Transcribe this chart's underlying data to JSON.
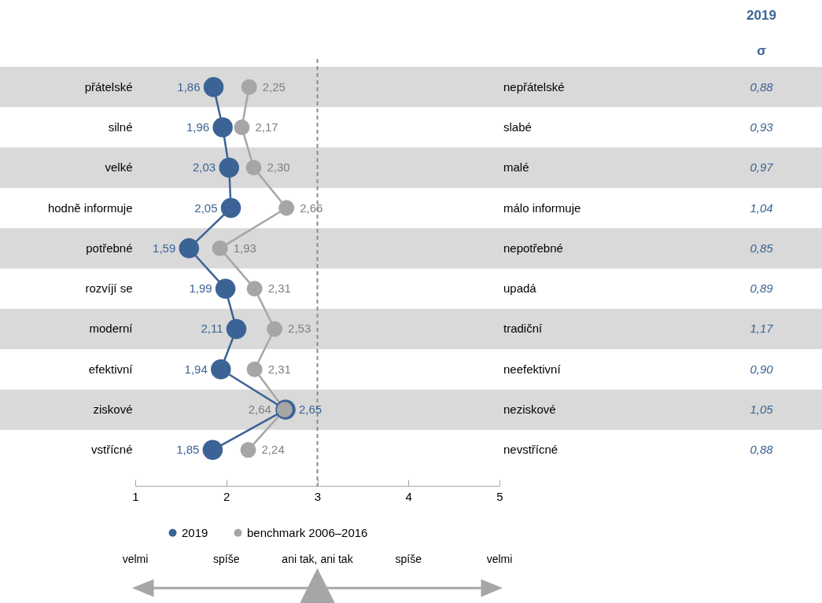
{
  "chart_data": {
    "type": "line",
    "orientation": "horizontal",
    "categories": [
      "přátelské",
      "silné",
      "velké",
      "hodně informuje",
      "potřebné",
      "rozvíjí se",
      "moderní",
      "efektivní",
      "ziskové",
      "vstřícné"
    ],
    "y2_categories": [
      "nepřátelské",
      "slabé",
      "malé",
      "málo informuje",
      "nepotřebné",
      "upadá",
      "tradiční",
      "neefektivní",
      "neziskové",
      "nevstřícné"
    ],
    "series": [
      {
        "name": "2019",
        "color": "#3b6395",
        "values": [
          1.86,
          1.96,
          2.03,
          2.05,
          1.59,
          1.99,
          2.11,
          1.94,
          2.65,
          1.85
        ],
        "value_labels": [
          "1,86",
          "1,96",
          "2,03",
          "2,05",
          "1,59",
          "1,99",
          "2,11",
          "1,94",
          "2,65",
          "1,85"
        ]
      },
      {
        "name": "benchmark 2006–2016",
        "color": "#a6a6a6",
        "values": [
          2.25,
          2.17,
          2.3,
          2.66,
          1.93,
          2.31,
          2.53,
          2.31,
          2.64,
          2.24
        ],
        "value_labels": [
          "2,25",
          "2,17",
          "2,30",
          "2,66",
          "1,93",
          "2,31",
          "2,53",
          "2,31",
          "2,64",
          "2,24"
        ]
      }
    ],
    "xlim": [
      1,
      5
    ],
    "xticks": [
      1,
      2,
      3,
      4,
      5
    ],
    "ref_lines": [
      {
        "axis": "x",
        "value": 3,
        "color": "#8c8c8c",
        "line_style": "dashed"
      }
    ],
    "bands": [
      {
        "axis": "y",
        "from": "přátelské",
        "to": "přátelské",
        "color": "#d9d9d9"
      },
      {
        "axis": "y",
        "from": "velké",
        "to": "velké",
        "color": "#d9d9d9"
      },
      {
        "axis": "y",
        "from": "potřebné",
        "to": "potřebné",
        "color": "#d9d9d9"
      },
      {
        "axis": "y",
        "from": "moderní",
        "to": "moderní",
        "color": "#d9d9d9"
      },
      {
        "axis": "y",
        "from": "ziskové",
        "to": "ziskové",
        "color": "#d9d9d9"
      }
    ],
    "annotations": [
      "2019",
      "σ",
      "0,88",
      "0,93",
      "0,97",
      "1,04",
      "0,85",
      "0,89",
      "1,17",
      "0,90",
      "1,05",
      "0,88",
      "velmi",
      "spíše",
      "ani tak, ani tak",
      "spíše",
      "velmi"
    ],
    "marker": "circle",
    "legend": "bottom",
    "grid": false
  }
}
